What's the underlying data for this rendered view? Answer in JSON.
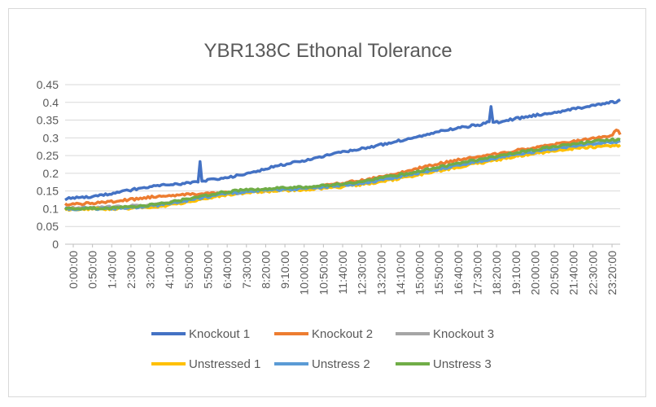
{
  "chart_data": {
    "type": "line",
    "title": "YBR138C Ethonal Tolerance",
    "xlabel": "",
    "ylabel": "",
    "ylim": [
      0,
      0.45
    ],
    "y_ticks": [
      "0",
      "0.05",
      "0.1",
      "0.15",
      "0.2",
      "0.25",
      "0.3",
      "0.35",
      "0.4",
      "0.45"
    ],
    "x_range_minutes": [
      0,
      1440
    ],
    "x_tick_labels": [
      "0:00:00",
      "0:50:00",
      "1:40:00",
      "2:30:00",
      "3:20:00",
      "4:10:00",
      "5:00:00",
      "5:50:00",
      "6:40:00",
      "7:30:00",
      "8:20:00",
      "9:10:00",
      "10:00:00",
      "10:50:00",
      "11:40:00",
      "12:30:00",
      "13:20:00",
      "14:10:00",
      "15:00:00",
      "15:50:00",
      "16:40:00",
      "17:30:00",
      "18:20:00",
      "19:10:00",
      "20:00:00",
      "20:50:00",
      "21:40:00",
      "22:30:00",
      "23:20:00"
    ],
    "grid": "horizontal",
    "legend_position": "bottom",
    "series": [
      {
        "name": "Knockout 1",
        "color": "#4472C4",
        "points": [
          [
            0,
            0.128
          ],
          [
            60,
            0.133
          ],
          [
            120,
            0.142
          ],
          [
            180,
            0.155
          ],
          [
            240,
            0.165
          ],
          [
            300,
            0.17
          ],
          [
            345,
            0.175
          ],
          [
            350,
            0.232
          ],
          [
            355,
            0.178
          ],
          [
            420,
            0.188
          ],
          [
            480,
            0.2
          ],
          [
            540,
            0.218
          ],
          [
            600,
            0.232
          ],
          [
            660,
            0.245
          ],
          [
            720,
            0.26
          ],
          [
            780,
            0.272
          ],
          [
            840,
            0.285
          ],
          [
            900,
            0.3
          ],
          [
            960,
            0.315
          ],
          [
            1020,
            0.328
          ],
          [
            1080,
            0.338
          ],
          [
            1100,
            0.345
          ],
          [
            1105,
            0.39
          ],
          [
            1110,
            0.342
          ],
          [
            1140,
            0.348
          ],
          [
            1200,
            0.36
          ],
          [
            1260,
            0.37
          ],
          [
            1320,
            0.382
          ],
          [
            1380,
            0.392
          ],
          [
            1440,
            0.405
          ]
        ]
      },
      {
        "name": "Knockout 2",
        "color": "#ED7D31",
        "points": [
          [
            0,
            0.112
          ],
          [
            60,
            0.115
          ],
          [
            120,
            0.12
          ],
          [
            180,
            0.127
          ],
          [
            240,
            0.135
          ],
          [
            300,
            0.14
          ],
          [
            360,
            0.142
          ],
          [
            420,
            0.145
          ],
          [
            480,
            0.15
          ],
          [
            540,
            0.155
          ],
          [
            600,
            0.158
          ],
          [
            660,
            0.163
          ],
          [
            720,
            0.172
          ],
          [
            780,
            0.182
          ],
          [
            840,
            0.195
          ],
          [
            900,
            0.21
          ],
          [
            960,
            0.225
          ],
          [
            1020,
            0.238
          ],
          [
            1080,
            0.248
          ],
          [
            1140,
            0.258
          ],
          [
            1200,
            0.27
          ],
          [
            1260,
            0.28
          ],
          [
            1320,
            0.29
          ],
          [
            1380,
            0.3
          ],
          [
            1420,
            0.308
          ],
          [
            1430,
            0.325
          ],
          [
            1440,
            0.31
          ]
        ]
      },
      {
        "name": "Knockout 3",
        "color": "#A5A5A5",
        "points": [
          [
            0,
            0.102
          ],
          [
            60,
            0.103
          ],
          [
            120,
            0.105
          ],
          [
            180,
            0.108
          ],
          [
            240,
            0.113
          ],
          [
            300,
            0.122
          ],
          [
            360,
            0.132
          ],
          [
            420,
            0.142
          ],
          [
            480,
            0.148
          ],
          [
            540,
            0.152
          ],
          [
            600,
            0.156
          ],
          [
            660,
            0.16
          ],
          [
            720,
            0.166
          ],
          [
            780,
            0.175
          ],
          [
            840,
            0.187
          ],
          [
            900,
            0.2
          ],
          [
            960,
            0.212
          ],
          [
            1020,
            0.225
          ],
          [
            1080,
            0.235
          ],
          [
            1140,
            0.245
          ],
          [
            1200,
            0.255
          ],
          [
            1260,
            0.265
          ],
          [
            1320,
            0.275
          ],
          [
            1380,
            0.285
          ],
          [
            1440,
            0.292
          ]
        ]
      },
      {
        "name": "Unstressed 1",
        "color": "#FFC000",
        "points": [
          [
            0,
            0.098
          ],
          [
            60,
            0.099
          ],
          [
            120,
            0.1
          ],
          [
            180,
            0.102
          ],
          [
            240,
            0.106
          ],
          [
            300,
            0.115
          ],
          [
            360,
            0.128
          ],
          [
            420,
            0.14
          ],
          [
            480,
            0.146
          ],
          [
            540,
            0.15
          ],
          [
            600,
            0.153
          ],
          [
            660,
            0.157
          ],
          [
            720,
            0.162
          ],
          [
            780,
            0.17
          ],
          [
            840,
            0.18
          ],
          [
            900,
            0.192
          ],
          [
            960,
            0.205
          ],
          [
            1020,
            0.218
          ],
          [
            1080,
            0.23
          ],
          [
            1140,
            0.242
          ],
          [
            1200,
            0.253
          ],
          [
            1260,
            0.262
          ],
          [
            1320,
            0.27
          ],
          [
            1380,
            0.275
          ],
          [
            1440,
            0.278
          ]
        ]
      },
      {
        "name": "Unstress 2",
        "color": "#5B9BD5",
        "points": [
          [
            0,
            0.1
          ],
          [
            60,
            0.1
          ],
          [
            120,
            0.101
          ],
          [
            180,
            0.104
          ],
          [
            240,
            0.11
          ],
          [
            300,
            0.12
          ],
          [
            360,
            0.132
          ],
          [
            420,
            0.143
          ],
          [
            480,
            0.149
          ],
          [
            540,
            0.153
          ],
          [
            600,
            0.156
          ],
          [
            660,
            0.16
          ],
          [
            720,
            0.166
          ],
          [
            780,
            0.174
          ],
          [
            840,
            0.185
          ],
          [
            900,
            0.197
          ],
          [
            960,
            0.21
          ],
          [
            1020,
            0.223
          ],
          [
            1080,
            0.235
          ],
          [
            1140,
            0.247
          ],
          [
            1200,
            0.258
          ],
          [
            1260,
            0.268
          ],
          [
            1320,
            0.277
          ],
          [
            1380,
            0.285
          ],
          [
            1440,
            0.29
          ]
        ]
      },
      {
        "name": "Unstress 3",
        "color": "#70AD47",
        "points": [
          [
            0,
            0.1
          ],
          [
            60,
            0.101
          ],
          [
            120,
            0.102
          ],
          [
            180,
            0.106
          ],
          [
            240,
            0.113
          ],
          [
            300,
            0.124
          ],
          [
            360,
            0.137
          ],
          [
            420,
            0.148
          ],
          [
            480,
            0.154
          ],
          [
            540,
            0.157
          ],
          [
            600,
            0.16
          ],
          [
            660,
            0.164
          ],
          [
            720,
            0.17
          ],
          [
            780,
            0.178
          ],
          [
            840,
            0.19
          ],
          [
            900,
            0.202
          ],
          [
            960,
            0.215
          ],
          [
            1020,
            0.228
          ],
          [
            1080,
            0.24
          ],
          [
            1140,
            0.252
          ],
          [
            1200,
            0.263
          ],
          [
            1260,
            0.274
          ],
          [
            1320,
            0.283
          ],
          [
            1380,
            0.292
          ],
          [
            1440,
            0.296
          ]
        ]
      }
    ]
  }
}
